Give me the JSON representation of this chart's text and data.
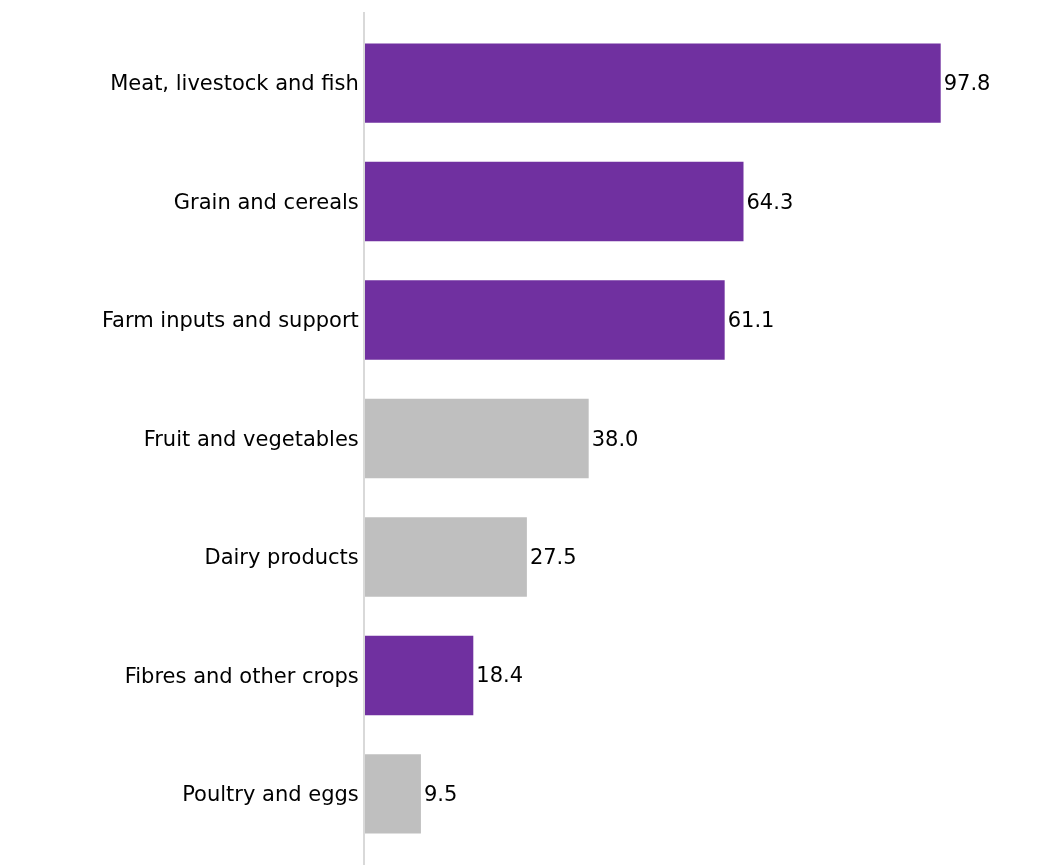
{
  "chart_data": {
    "type": "bar",
    "orientation": "horizontal",
    "categories": [
      "Meat, livestock and fish",
      "Grain and cereals",
      "Farm inputs and support",
      "Fruit and vegetables",
      "Dairy products",
      "Fibres and other crops",
      "Poultry and eggs"
    ],
    "values": [
      97.8,
      64.3,
      61.1,
      38.0,
      27.5,
      18.4,
      9.5
    ],
    "value_labels": [
      "97.8",
      "64.3",
      "61.1",
      "38.0",
      "27.5",
      "18.4",
      "9.5"
    ],
    "colors": [
      "#7030a0",
      "#7030a0",
      "#7030a0",
      "#bfbfbf",
      "#bfbfbf",
      "#7030a0",
      "#bfbfbf"
    ],
    "grid": false,
    "legend": false
  }
}
